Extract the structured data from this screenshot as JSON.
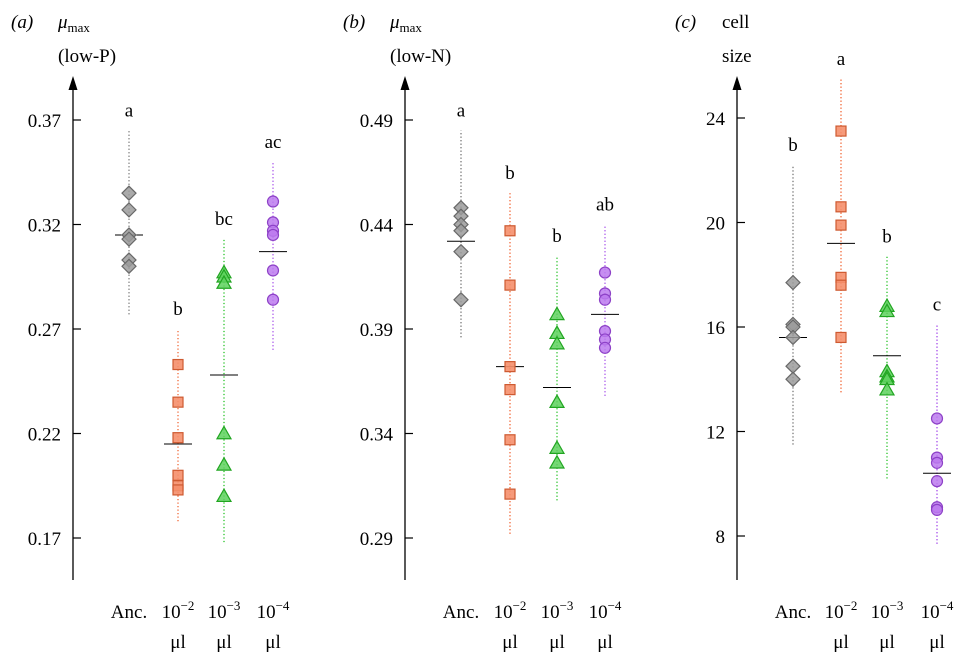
{
  "chart_data": [
    {
      "type": "scatter",
      "panel_label": "(a)",
      "ylabel_main": "μ",
      "ylabel_sub": "max",
      "ylabel_line2": "(low-P)",
      "yticks": [
        0.17,
        0.22,
        0.27,
        0.32,
        0.37
      ],
      "ytick_labels": [
        "0.17",
        "0.22",
        "0.27",
        "0.32",
        "0.37"
      ],
      "ylim": [
        0.15,
        0.39
      ],
      "groups": [
        {
          "label_top": "Anc.",
          "label_bottom": "",
          "letter": "a",
          "color": "#7a7a7a",
          "marker": "diamond",
          "points": [
            0.335,
            0.327,
            0.315,
            0.313,
            0.303,
            0.3
          ],
          "mean": 0.315,
          "range": [
            0.277,
            0.365
          ]
        },
        {
          "label_top": "10",
          "label_exp": "−2",
          "label_bottom": "μl",
          "letter": "b",
          "color": "#f26a3a",
          "marker": "square",
          "points": [
            0.253,
            0.235,
            0.218,
            0.2,
            0.195,
            0.193
          ],
          "mean": 0.215,
          "range": [
            0.178,
            0.27
          ]
        },
        {
          "label_top": "10",
          "label_exp": "−3",
          "label_bottom": "μl",
          "letter": "bc",
          "color": "#27c227",
          "marker": "triangle",
          "points": [
            0.297,
            0.295,
            0.292,
            0.22,
            0.205,
            0.19
          ],
          "mean": 0.248,
          "range": [
            0.168,
            0.313
          ]
        },
        {
          "label_top": "10",
          "label_exp": "−4",
          "label_bottom": "μl",
          "letter": "ac",
          "color": "#a64dea",
          "marker": "circle",
          "points": [
            0.331,
            0.321,
            0.317,
            0.315,
            0.298,
            0.284
          ],
          "mean": 0.307,
          "range": [
            0.26,
            0.35
          ]
        }
      ]
    },
    {
      "type": "scatter",
      "panel_label": "(b)",
      "ylabel_main": "μ",
      "ylabel_sub": "max",
      "ylabel_line2": "(low-N)",
      "yticks": [
        0.29,
        0.34,
        0.39,
        0.44,
        0.49
      ],
      "ytick_labels": [
        "0.29",
        "0.34",
        "0.39",
        "0.44",
        "0.49"
      ],
      "ylim": [
        0.27,
        0.51
      ],
      "groups": [
        {
          "label_top": "Anc.",
          "label_bottom": "",
          "letter": "a",
          "color": "#7a7a7a",
          "marker": "diamond",
          "points": [
            0.448,
            0.444,
            0.44,
            0.437,
            0.427,
            0.404
          ],
          "mean": 0.432,
          "range": [
            0.386,
            0.485
          ]
        },
        {
          "label_top": "10",
          "label_exp": "−2",
          "label_bottom": "μl",
          "letter": "b",
          "color": "#f26a3a",
          "marker": "square",
          "points": [
            0.437,
            0.411,
            0.372,
            0.361,
            0.337,
            0.311
          ],
          "mean": 0.372,
          "range": [
            0.292,
            0.455
          ]
        },
        {
          "label_top": "10",
          "label_exp": "−3",
          "label_bottom": "μl",
          "letter": "b",
          "color": "#27c227",
          "marker": "triangle",
          "points": [
            0.397,
            0.388,
            0.383,
            0.355,
            0.333,
            0.326
          ],
          "mean": 0.362,
          "range": [
            0.308,
            0.425
          ]
        },
        {
          "label_top": "10",
          "label_exp": "−4",
          "label_bottom": "μl",
          "letter": "ab",
          "color": "#a64dea",
          "marker": "circle",
          "points": [
            0.417,
            0.407,
            0.404,
            0.389,
            0.385,
            0.381
          ],
          "mean": 0.397,
          "range": [
            0.358,
            0.44
          ]
        }
      ]
    },
    {
      "type": "scatter",
      "panel_label": "(c)",
      "ylabel_main": "cell",
      "ylabel_sub": "",
      "ylabel_line2": "size",
      "yticks": [
        8,
        12,
        16,
        20,
        24
      ],
      "ytick_labels": [
        "8",
        "12",
        "16",
        "20",
        "24"
      ],
      "ylim": [
        6.3,
        26.3
      ],
      "groups": [
        {
          "label_top": "Anc.",
          "label_bottom": "",
          "letter": "b",
          "color": "#7a7a7a",
          "marker": "diamond",
          "points": [
            17.7,
            16.1,
            16.0,
            15.6,
            14.5,
            14.0
          ],
          "mean": 15.6,
          "range": [
            11.5,
            22.2
          ]
        },
        {
          "label_top": "10",
          "label_exp": "−2",
          "label_bottom": "μl",
          "letter": "a",
          "color": "#f26a3a",
          "marker": "square",
          "points": [
            23.5,
            20.6,
            19.9,
            17.9,
            17.6,
            15.6
          ],
          "mean": 19.2,
          "range": [
            13.5,
            25.5
          ]
        },
        {
          "label_top": "10",
          "label_exp": "−3",
          "label_bottom": "μl",
          "letter": "b",
          "color": "#27c227",
          "marker": "triangle",
          "points": [
            16.8,
            16.6,
            14.3,
            14.1,
            14.0,
            13.6
          ],
          "mean": 14.9,
          "range": [
            10.2,
            18.7
          ]
        },
        {
          "label_top": "10",
          "label_exp": "−4",
          "label_bottom": "μl",
          "letter": "c",
          "color": "#a64dea",
          "marker": "circle",
          "points": [
            12.5,
            11.0,
            10.8,
            10.1,
            9.1,
            9.0
          ],
          "mean": 10.4,
          "range": [
            7.7,
            16.1
          ]
        }
      ]
    }
  ]
}
